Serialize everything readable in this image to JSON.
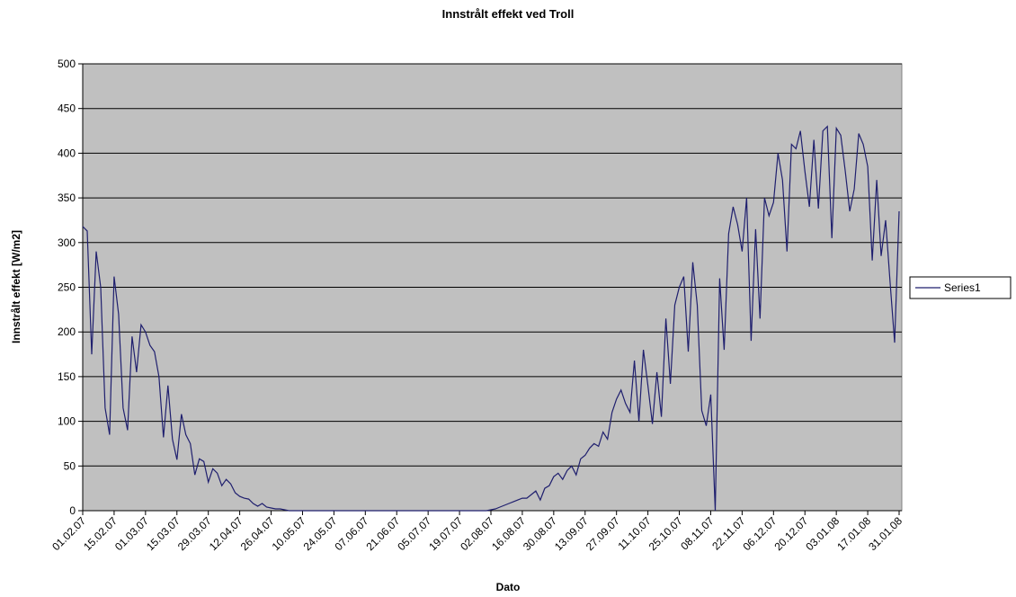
{
  "chart_data": {
    "type": "line",
    "title": "Innstrålt effekt ved Troll",
    "x_label": "Dato",
    "y_label": "Innstrålt effekt [W/m2]",
    "categories": [
      "01.02.07",
      null,
      null,
      null,
      null,
      null,
      null,
      "15.02.07",
      null,
      null,
      null,
      null,
      null,
      null,
      "01.03.07",
      null,
      null,
      null,
      null,
      null,
      null,
      "15.03.07",
      null,
      null,
      null,
      null,
      null,
      null,
      "29.03.07",
      null,
      null,
      null,
      null,
      null,
      null,
      "12.04.07",
      null,
      null,
      null,
      null,
      null,
      null,
      "26.04.07",
      null,
      null,
      null,
      null,
      null,
      null,
      "10.05.07",
      null,
      null,
      null,
      null,
      null,
      null,
      "24.05.07",
      null,
      null,
      null,
      null,
      null,
      null,
      "07.06.07",
      null,
      null,
      null,
      null,
      null,
      null,
      "21.06.07",
      null,
      null,
      null,
      null,
      null,
      null,
      "05.07.07",
      null,
      null,
      null,
      null,
      null,
      null,
      "19.07.07",
      null,
      null,
      null,
      null,
      null,
      null,
      "02.08.07",
      null,
      null,
      null,
      null,
      null,
      null,
      "16.08.07",
      null,
      null,
      null,
      null,
      null,
      null,
      "30.08.07",
      null,
      null,
      null,
      null,
      null,
      null,
      "13.09.07",
      null,
      null,
      null,
      null,
      null,
      null,
      "27.09.07",
      null,
      null,
      null,
      null,
      null,
      null,
      "11.10.07",
      null,
      null,
      null,
      null,
      null,
      null,
      "25.10.07",
      null,
      null,
      null,
      null,
      null,
      null,
      "08.11.07",
      null,
      null,
      null,
      null,
      null,
      null,
      "22.11.07",
      null,
      null,
      null,
      null,
      null,
      null,
      "06.12.07",
      null,
      null,
      null,
      null,
      null,
      null,
      "20.12.07",
      null,
      null,
      null,
      null,
      null,
      null,
      "03.01.08",
      null,
      null,
      null,
      null,
      null,
      null,
      "17.01.08",
      null,
      null,
      null,
      null,
      null,
      null,
      "31.01.08"
    ],
    "series": [
      {
        "name": "Series1",
        "color": "#1f1f6e",
        "values": [
          318,
          313,
          175,
          290,
          250,
          115,
          85,
          262,
          220,
          115,
          90,
          195,
          155,
          208,
          200,
          185,
          178,
          150,
          82,
          140,
          80,
          57,
          108,
          85,
          75,
          40,
          58,
          55,
          32,
          47,
          42,
          28,
          35,
          30,
          20,
          16,
          14,
          13,
          8,
          5,
          8,
          4,
          3,
          2,
          2,
          1,
          0,
          0,
          0,
          0,
          0,
          0,
          0,
          0,
          0,
          0,
          0,
          0,
          0,
          0,
          0,
          0,
          0,
          0,
          0,
          0,
          0,
          0,
          0,
          0,
          0,
          0,
          0,
          0,
          0,
          0,
          0,
          0,
          0,
          0,
          0,
          0,
          0,
          0,
          0,
          0,
          0,
          0,
          0,
          0,
          0,
          1,
          2,
          4,
          6,
          8,
          10,
          12,
          14,
          14,
          18,
          22,
          12,
          25,
          28,
          38,
          42,
          35,
          45,
          50,
          40,
          58,
          62,
          70,
          75,
          72,
          88,
          80,
          110,
          125,
          135,
          120,
          110,
          168,
          100,
          180,
          140,
          97,
          155,
          105,
          215,
          142,
          230,
          250,
          262,
          178,
          278,
          230,
          112,
          95,
          130,
          0,
          260,
          180,
          310,
          340,
          320,
          290,
          350,
          190,
          315,
          215,
          350,
          330,
          345,
          400,
          370,
          290,
          410,
          405,
          425,
          380,
          340,
          415,
          338,
          425,
          430,
          305,
          428,
          420,
          380,
          335,
          360,
          422,
          410,
          385,
          280,
          370,
          285,
          325,
          255,
          188,
          335
        ]
      }
    ],
    "ylim": [
      0,
      500
    ],
    "yticks": [
      0,
      50,
      100,
      150,
      200,
      250,
      300,
      350,
      400,
      450,
      500
    ],
    "grid": true,
    "legend": "right",
    "plot_background": "#c0c0c0"
  }
}
